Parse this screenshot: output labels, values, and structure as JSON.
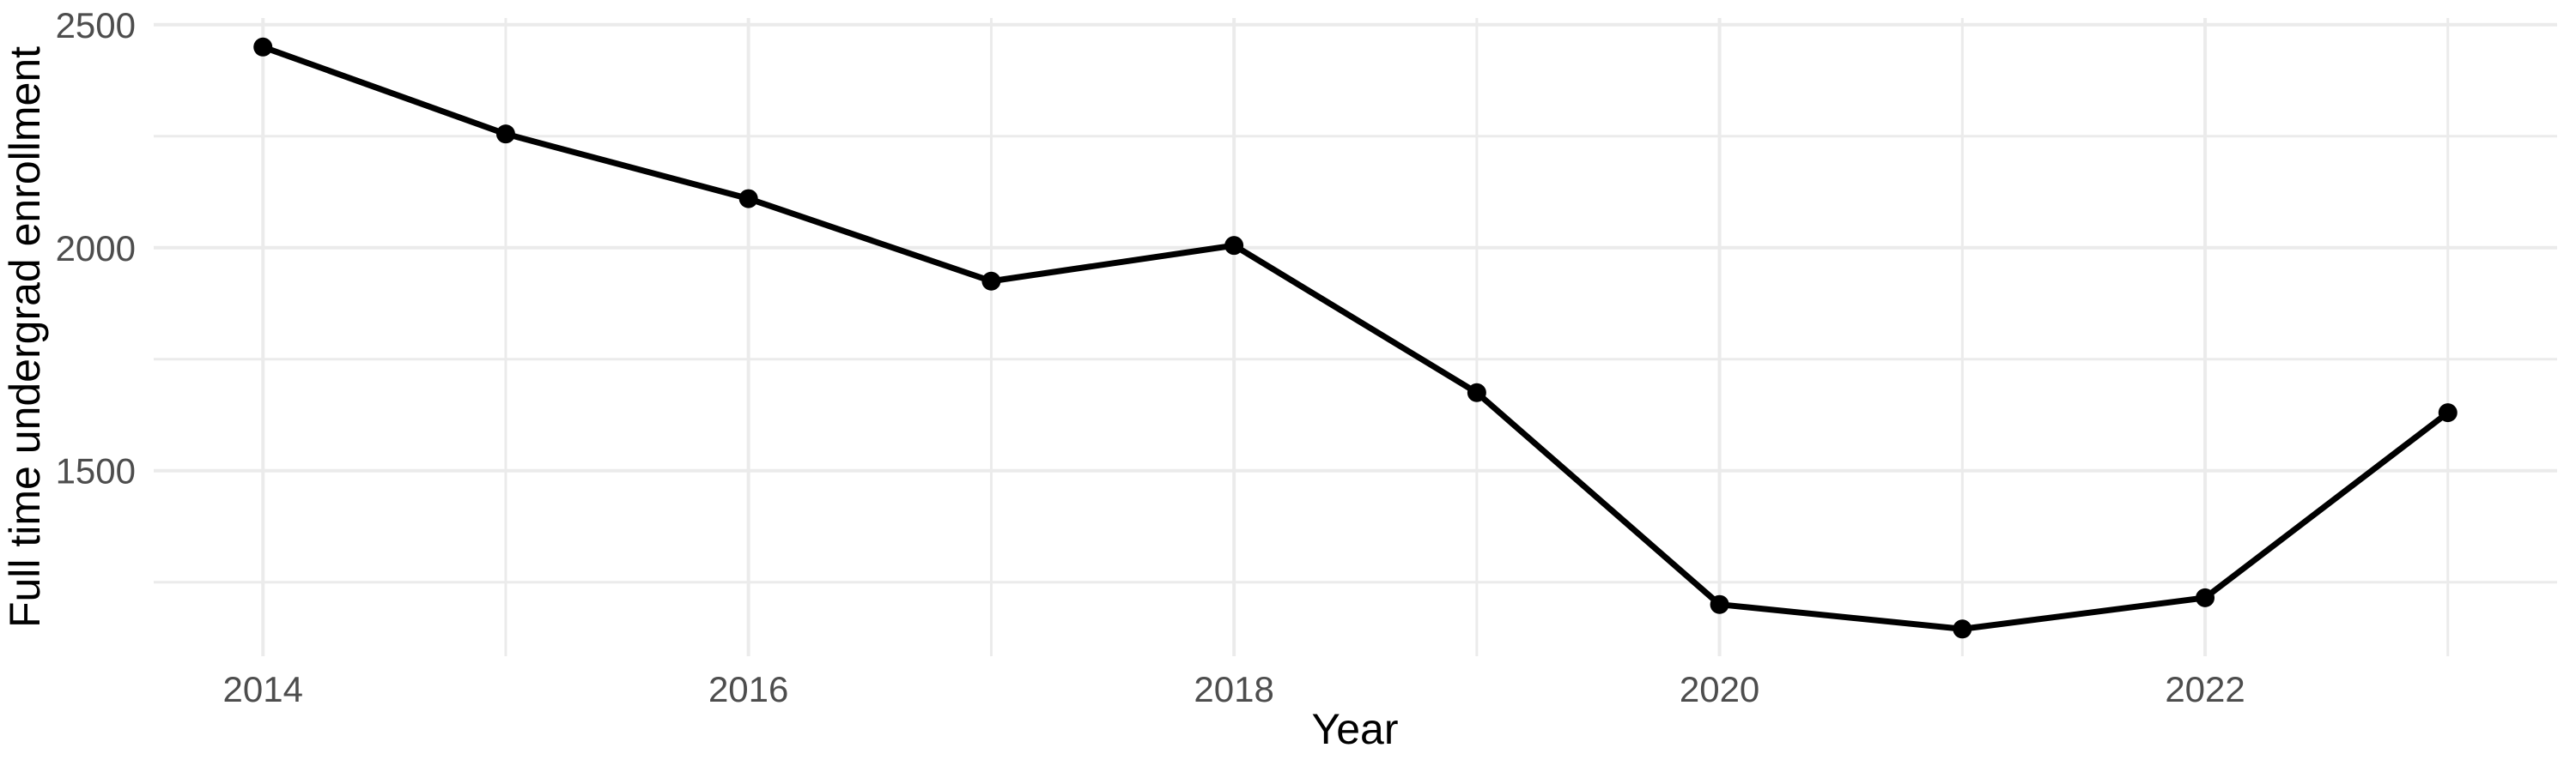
{
  "chart_data": {
    "type": "line",
    "title": "",
    "xlabel": "Year",
    "ylabel": "Full time undergrad enrollment",
    "x": [
      2014,
      2015,
      2016,
      2017,
      2018,
      2019,
      2020,
      2021,
      2022,
      2023
    ],
    "series": [
      {
        "name": "Full time undergrad enrollment",
        "values": [
          2450,
          2255,
          2110,
          1925,
          2005,
          1675,
          1200,
          1145,
          1215,
          1630
        ]
      }
    ],
    "x_ticks": [
      2014,
      2016,
      2018,
      2020,
      2022
    ],
    "x_minor_ticks": [
      2015,
      2017,
      2019,
      2021,
      2023
    ],
    "y_ticks": [
      1500,
      2000,
      2500
    ],
    "y_minor_ticks": [
      1250,
      1750,
      2250
    ],
    "xlim": [
      2013.55,
      2023.45
    ],
    "ylim": [
      1084,
      2515
    ],
    "grid": true,
    "legend": false,
    "line_color": "#000000",
    "point_color": "#000000",
    "grid_color": "#ebebeb",
    "tick_label_color": "#4d4d4d",
    "axis_title_color": "#000000",
    "background": "#ffffff"
  }
}
